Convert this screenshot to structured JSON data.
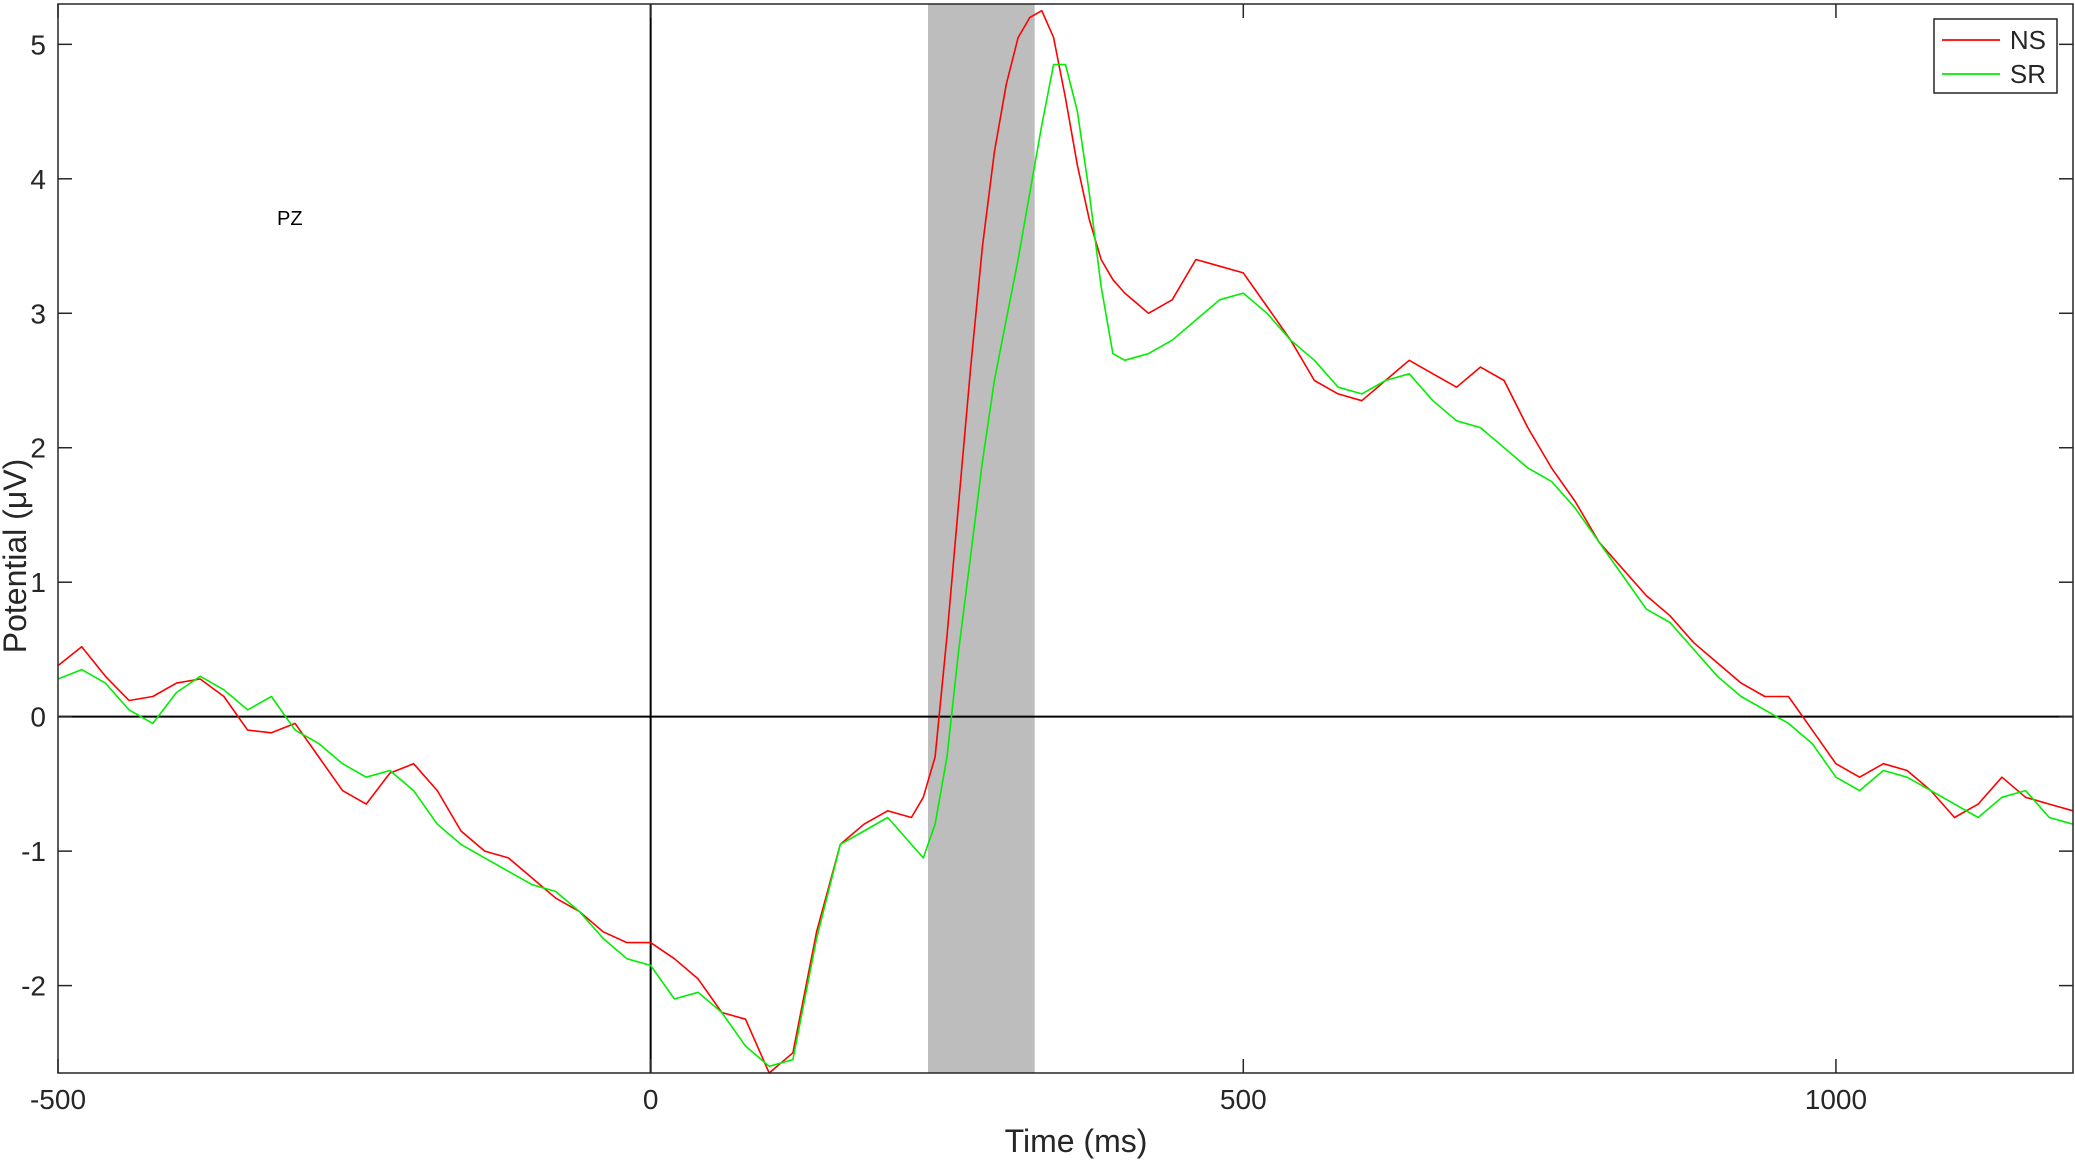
{
  "chart_data": {
    "type": "line",
    "title": "",
    "xlabel": "Time (ms)",
    "ylabel": "Potential (μV)",
    "xlim": [
      -500,
      1200
    ],
    "ylim": [
      -2.65,
      5.3
    ],
    "xticks": [
      -500,
      0,
      500,
      1000
    ],
    "yticks": [
      -2,
      -1,
      0,
      1,
      2,
      3,
      4,
      5
    ],
    "xtick_labels": [
      "-500",
      "0",
      "500",
      "1000"
    ],
    "ytick_labels": [
      "-2",
      "-1",
      "0",
      "1",
      "2",
      "3",
      "4",
      "5"
    ],
    "grid": false,
    "legend": "top-right",
    "annotation": "PZ",
    "shaded_interval": [
      234,
      324
    ],
    "shade_color": "#bdbdbd",
    "reference_lines": {
      "x": 0,
      "y": 0
    },
    "x": [
      -500,
      -480,
      -460,
      -440,
      -420,
      -400,
      -380,
      -360,
      -340,
      -320,
      -300,
      -280,
      -260,
      -240,
      -220,
      -200,
      -180,
      -160,
      -140,
      -120,
      -100,
      -80,
      -60,
      -40,
      -20,
      0,
      20,
      40,
      60,
      80,
      100,
      120,
      140,
      160,
      180,
      200,
      220,
      230,
      240,
      250,
      260,
      270,
      280,
      290,
      300,
      310,
      320,
      330,
      340,
      350,
      360,
      370,
      380,
      390,
      400,
      420,
      440,
      460,
      480,
      500,
      520,
      540,
      560,
      580,
      600,
      620,
      640,
      660,
      680,
      700,
      720,
      740,
      760,
      780,
      800,
      820,
      840,
      860,
      880,
      900,
      920,
      940,
      960,
      980,
      1000,
      1020,
      1040,
      1060,
      1080,
      1100,
      1120,
      1140,
      1160,
      1180,
      1200
    ],
    "series": [
      {
        "name": "NS",
        "color": "#ff0000",
        "values": [
          0.38,
          0.52,
          0.3,
          0.12,
          0.15,
          0.25,
          0.28,
          0.15,
          -0.1,
          -0.12,
          -0.05,
          -0.3,
          -0.55,
          -0.65,
          -0.42,
          -0.35,
          -0.55,
          -0.85,
          -1.0,
          -1.05,
          -1.2,
          -1.35,
          -1.45,
          -1.6,
          -1.68,
          -1.68,
          -1.8,
          -1.95,
          -2.2,
          -2.25,
          -2.65,
          -2.5,
          -1.6,
          -0.95,
          -0.8,
          -0.7,
          -0.75,
          -0.6,
          -0.3,
          0.6,
          1.6,
          2.6,
          3.5,
          4.2,
          4.7,
          5.05,
          5.2,
          5.25,
          5.05,
          4.6,
          4.1,
          3.7,
          3.4,
          3.25,
          3.15,
          3.0,
          3.1,
          3.4,
          3.35,
          3.3,
          3.05,
          2.8,
          2.5,
          2.4,
          2.35,
          2.5,
          2.65,
          2.55,
          2.45,
          2.6,
          2.5,
          2.15,
          1.85,
          1.6,
          1.3,
          1.1,
          0.9,
          0.75,
          0.55,
          0.4,
          0.25,
          0.15,
          0.15,
          -0.1,
          -0.35,
          -0.45,
          -0.35,
          -0.4,
          -0.55,
          -0.75,
          -0.65,
          -0.45,
          -0.6,
          -0.65,
          -0.7
        ]
      },
      {
        "name": "SR",
        "color": "#00ee00",
        "values": [
          0.28,
          0.35,
          0.25,
          0.05,
          -0.05,
          0.18,
          0.3,
          0.2,
          0.05,
          0.15,
          -0.1,
          -0.2,
          -0.35,
          -0.45,
          -0.4,
          -0.55,
          -0.8,
          -0.95,
          -1.05,
          -1.15,
          -1.25,
          -1.3,
          -1.45,
          -1.65,
          -1.8,
          -1.85,
          -2.1,
          -2.05,
          -2.2,
          -2.45,
          -2.6,
          -2.55,
          -1.65,
          -0.95,
          -0.85,
          -0.75,
          -0.95,
          -1.05,
          -0.8,
          -0.3,
          0.5,
          1.2,
          1.9,
          2.5,
          2.95,
          3.4,
          3.9,
          4.4,
          4.85,
          4.85,
          4.5,
          3.9,
          3.2,
          2.7,
          2.65,
          2.7,
          2.8,
          2.95,
          3.1,
          3.15,
          3.0,
          2.8,
          2.65,
          2.45,
          2.4,
          2.5,
          2.55,
          2.35,
          2.2,
          2.15,
          2.0,
          1.85,
          1.75,
          1.55,
          1.3,
          1.05,
          0.8,
          0.7,
          0.5,
          0.3,
          0.15,
          0.05,
          -0.05,
          -0.2,
          -0.45,
          -0.55,
          -0.4,
          -0.45,
          -0.55,
          -0.65,
          -0.75,
          -0.6,
          -0.55,
          -0.75,
          -0.8
        ]
      }
    ]
  }
}
